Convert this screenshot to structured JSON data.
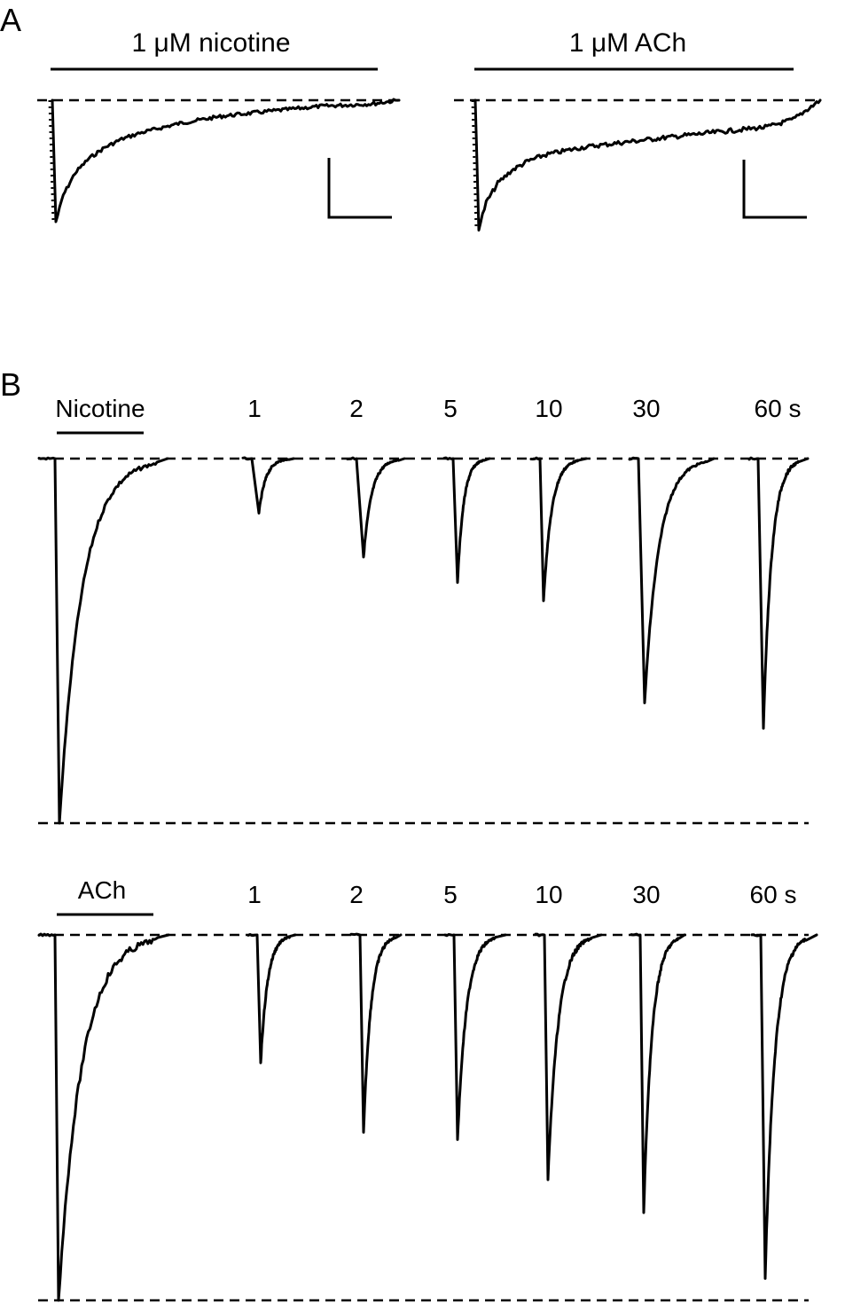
{
  "panel_a": {
    "label": "A",
    "left": {
      "title": "1 μM nicotine"
    },
    "right": {
      "title": "1 μM ACh"
    }
  },
  "panel_b": {
    "label": "B",
    "nicotine_row": {
      "agent": "Nicotine",
      "intervals": [
        "1",
        "2",
        "5",
        "10",
        "30",
        "60 s"
      ]
    },
    "ach_row": {
      "agent": "ACh",
      "intervals": [
        "1",
        "2",
        "5",
        "10",
        "30",
        "60 s"
      ]
    }
  },
  "chart_data": [
    {
      "type": "line",
      "title": "1 μM nicotine",
      "panel": "A",
      "series": [
        {
          "values": [
            0,
            -1.0,
            -0.78,
            -0.6,
            -0.48,
            -0.39,
            -0.32,
            -0.27,
            -0.23,
            -0.19,
            -0.16,
            -0.13,
            -0.11,
            -0.09,
            -0.07,
            -0.05,
            -0.04,
            -0.03,
            0
          ]
        }
      ],
      "grid": false
    },
    {
      "type": "line",
      "title": "1 μM ACh",
      "panel": "A",
      "series": [
        {
          "values": [
            0,
            -1.0,
            -0.8,
            -0.65,
            -0.55,
            -0.48,
            -0.43,
            -0.4,
            -0.37,
            -0.35,
            -0.33,
            -0.31,
            -0.29,
            -0.27,
            -0.25,
            -0.23,
            -0.21,
            -0.15,
            0
          ]
        }
      ],
      "grid": false
    },
    {
      "type": "line",
      "panel": "B",
      "series": [
        {
          "name": "Nicotine",
          "categories": [
            "Nicotine",
            "1",
            "2",
            "5",
            "10",
            "30",
            "60 s"
          ],
          "values": [
            1.0,
            0.15,
            0.27,
            0.34,
            0.39,
            0.67,
            0.74
          ]
        }
      ],
      "grid": false
    },
    {
      "type": "line",
      "panel": "B",
      "series": [
        {
          "name": "ACh",
          "categories": [
            "ACh",
            "1",
            "2",
            "5",
            "10",
            "30",
            "60 s"
          ],
          "values": [
            1.0,
            0.35,
            0.54,
            0.56,
            0.67,
            0.76,
            0.94
          ]
        }
      ],
      "grid": false
    }
  ]
}
